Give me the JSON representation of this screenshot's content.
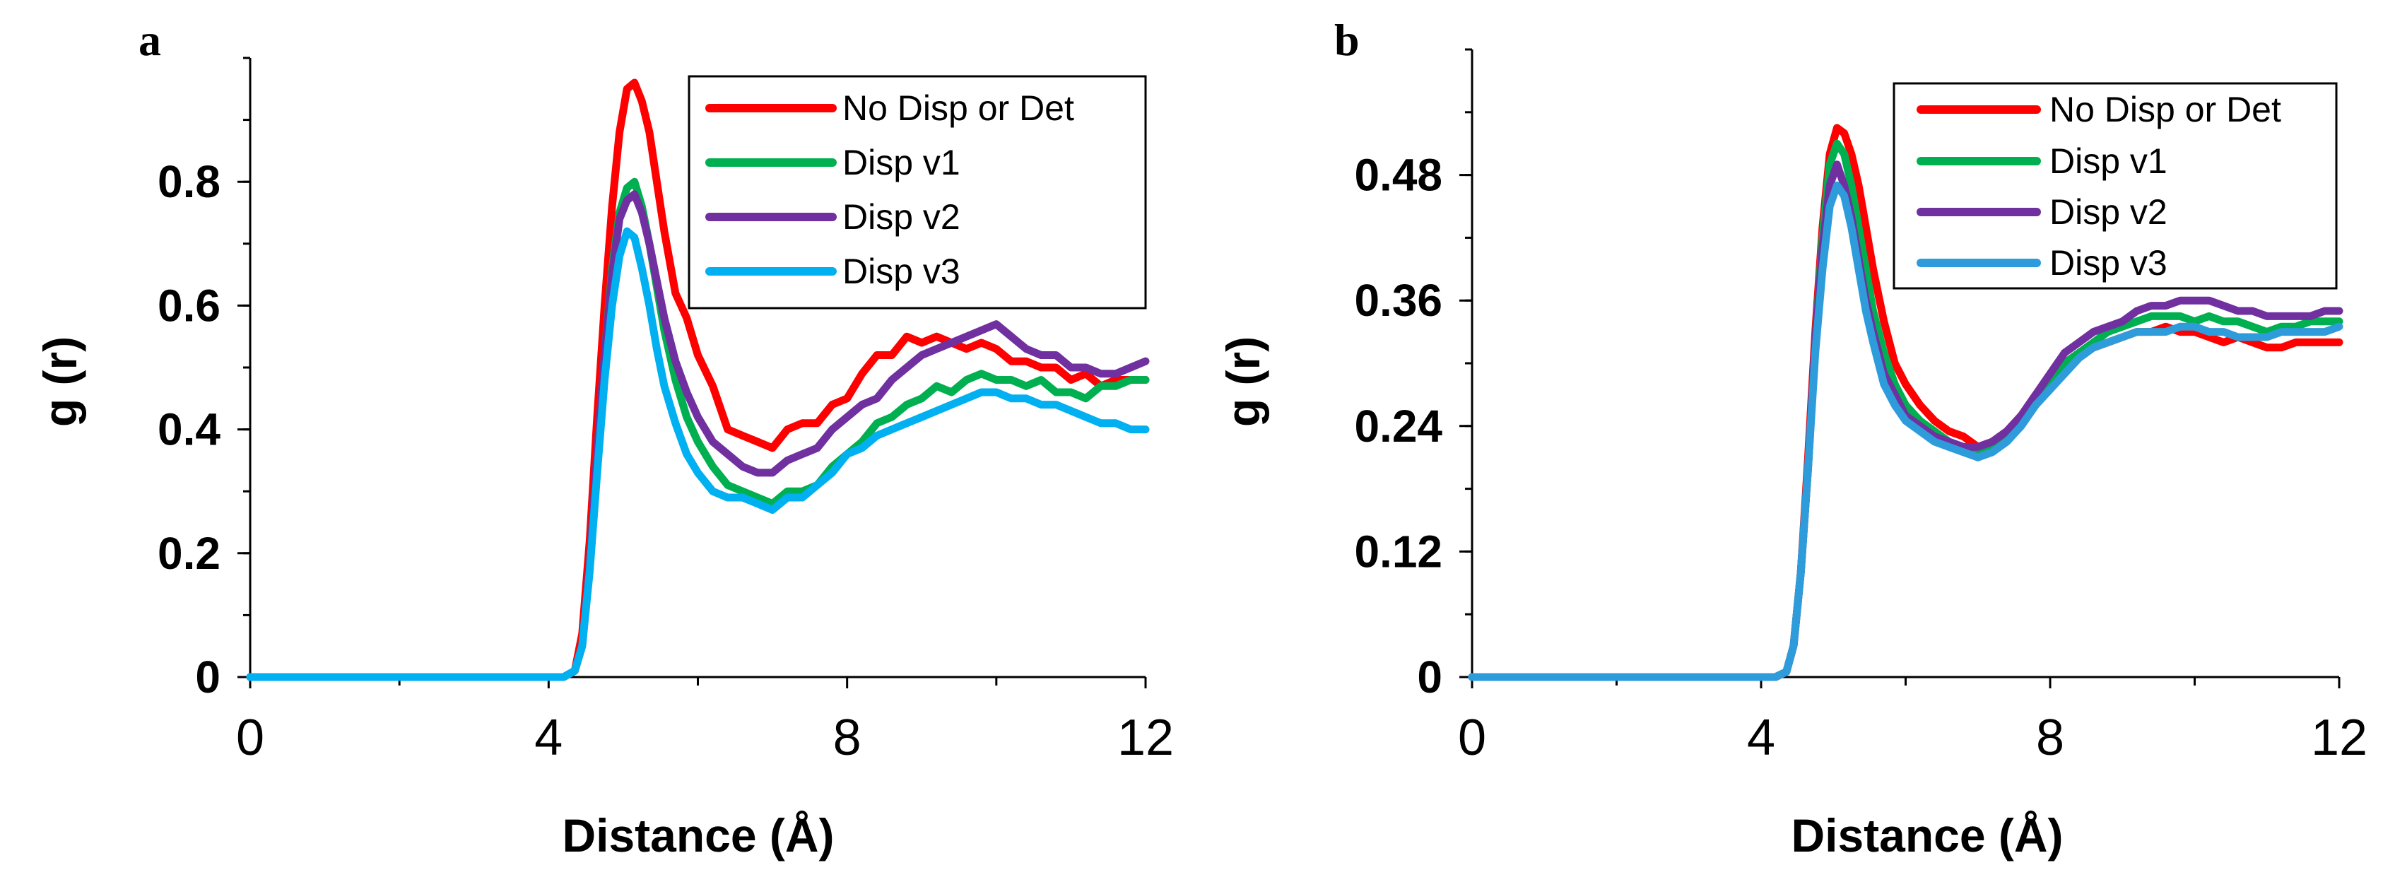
{
  "chart_data": [
    {
      "panel": "a",
      "type": "line",
      "xlabel": "Distance (Å)",
      "ylabel": "g (r)",
      "xlim": [
        0,
        12
      ],
      "ylim": [
        0,
        1.0
      ],
      "xticks": [
        0,
        4,
        8,
        12
      ],
      "xtick_labels": [
        "0",
        "4",
        "8",
        "12"
      ],
      "yticks": [
        0,
        0.2,
        0.4,
        0.6,
        0.8
      ],
      "ytick_labels": [
        "0",
        "0.2",
        "0.4",
        "0.6",
        "0.8"
      ],
      "legend_position": "top-right",
      "series": [
        {
          "name": "No Disp or Det",
          "color": "#ff0000",
          "x": [
            0,
            4.0,
            4.2,
            4.35,
            4.45,
            4.55,
            4.65,
            4.75,
            4.85,
            4.95,
            5.05,
            5.15,
            5.25,
            5.35,
            5.45,
            5.55,
            5.7,
            5.85,
            6.0,
            6.2,
            6.4,
            6.6,
            6.8,
            7.0,
            7.2,
            7.4,
            7.6,
            7.8,
            8.0,
            8.2,
            8.4,
            8.6,
            8.8,
            9.0,
            9.2,
            9.4,
            9.6,
            9.8,
            10.0,
            10.2,
            10.4,
            10.6,
            10.8,
            11.0,
            11.2,
            11.4,
            11.6,
            11.8,
            12.0
          ],
          "y": [
            0,
            0,
            0,
            0.01,
            0.07,
            0.22,
            0.42,
            0.6,
            0.76,
            0.88,
            0.95,
            0.96,
            0.93,
            0.88,
            0.8,
            0.72,
            0.62,
            0.58,
            0.52,
            0.47,
            0.4,
            0.39,
            0.38,
            0.37,
            0.4,
            0.41,
            0.41,
            0.44,
            0.45,
            0.49,
            0.52,
            0.52,
            0.55,
            0.54,
            0.55,
            0.54,
            0.53,
            0.54,
            0.53,
            0.51,
            0.51,
            0.5,
            0.5,
            0.48,
            0.49,
            0.47,
            0.48,
            0.48,
            0.48
          ]
        },
        {
          "name": "Disp v1",
          "color": "#00b050",
          "x": [
            0,
            4.0,
            4.2,
            4.35,
            4.45,
            4.55,
            4.65,
            4.75,
            4.85,
            4.95,
            5.05,
            5.15,
            5.25,
            5.35,
            5.45,
            5.55,
            5.7,
            5.85,
            6.0,
            6.2,
            6.4,
            6.6,
            6.8,
            7.0,
            7.2,
            7.4,
            7.6,
            7.8,
            8.0,
            8.2,
            8.4,
            8.6,
            8.8,
            9.0,
            9.2,
            9.4,
            9.6,
            9.8,
            10.0,
            10.2,
            10.4,
            10.6,
            10.8,
            11.0,
            11.2,
            11.4,
            11.6,
            11.8,
            12.0
          ],
          "y": [
            0,
            0,
            0,
            0.01,
            0.05,
            0.18,
            0.36,
            0.52,
            0.66,
            0.75,
            0.79,
            0.8,
            0.76,
            0.7,
            0.63,
            0.56,
            0.48,
            0.42,
            0.38,
            0.34,
            0.31,
            0.3,
            0.29,
            0.28,
            0.3,
            0.3,
            0.31,
            0.34,
            0.36,
            0.38,
            0.41,
            0.42,
            0.44,
            0.45,
            0.47,
            0.46,
            0.48,
            0.49,
            0.48,
            0.48,
            0.47,
            0.48,
            0.46,
            0.46,
            0.45,
            0.47,
            0.47,
            0.48,
            0.48
          ]
        },
        {
          "name": "Disp v2",
          "color": "#7030a0",
          "x": [
            0,
            4.0,
            4.2,
            4.35,
            4.45,
            4.55,
            4.65,
            4.75,
            4.85,
            4.95,
            5.05,
            5.15,
            5.25,
            5.35,
            5.45,
            5.55,
            5.7,
            5.85,
            6.0,
            6.2,
            6.4,
            6.6,
            6.8,
            7.0,
            7.2,
            7.4,
            7.6,
            7.8,
            8.0,
            8.2,
            8.4,
            8.6,
            8.8,
            9.0,
            9.2,
            9.4,
            9.6,
            9.8,
            10.0,
            10.2,
            10.4,
            10.6,
            10.8,
            11.0,
            11.2,
            11.4,
            11.6,
            11.8,
            12.0
          ],
          "y": [
            0,
            0,
            0,
            0.01,
            0.05,
            0.18,
            0.36,
            0.52,
            0.65,
            0.74,
            0.77,
            0.78,
            0.75,
            0.7,
            0.64,
            0.58,
            0.51,
            0.46,
            0.42,
            0.38,
            0.36,
            0.34,
            0.33,
            0.33,
            0.35,
            0.36,
            0.37,
            0.4,
            0.42,
            0.44,
            0.45,
            0.48,
            0.5,
            0.52,
            0.53,
            0.54,
            0.55,
            0.56,
            0.57,
            0.55,
            0.53,
            0.52,
            0.52,
            0.5,
            0.5,
            0.49,
            0.49,
            0.5,
            0.51
          ]
        },
        {
          "name": "Disp v3",
          "color": "#00b0f0",
          "x": [
            0,
            4.0,
            4.2,
            4.35,
            4.45,
            4.55,
            4.65,
            4.75,
            4.85,
            4.95,
            5.05,
            5.15,
            5.25,
            5.35,
            5.45,
            5.55,
            5.7,
            5.85,
            6.0,
            6.2,
            6.4,
            6.6,
            6.8,
            7.0,
            7.2,
            7.4,
            7.6,
            7.8,
            8.0,
            8.2,
            8.4,
            8.6,
            8.8,
            9.0,
            9.2,
            9.4,
            9.6,
            9.8,
            10.0,
            10.2,
            10.4,
            10.6,
            10.8,
            11.0,
            11.2,
            11.4,
            11.6,
            11.8,
            12.0
          ],
          "y": [
            0,
            0,
            0,
            0.01,
            0.05,
            0.17,
            0.33,
            0.48,
            0.6,
            0.68,
            0.72,
            0.71,
            0.66,
            0.6,
            0.53,
            0.47,
            0.41,
            0.36,
            0.33,
            0.3,
            0.29,
            0.29,
            0.28,
            0.27,
            0.29,
            0.29,
            0.31,
            0.33,
            0.36,
            0.37,
            0.39,
            0.4,
            0.41,
            0.42,
            0.43,
            0.44,
            0.45,
            0.46,
            0.46,
            0.45,
            0.45,
            0.44,
            0.44,
            0.43,
            0.42,
            0.41,
            0.41,
            0.4,
            0.4
          ]
        }
      ]
    },
    {
      "panel": "b",
      "type": "line",
      "xlabel": "Distance (Å)",
      "ylabel": "g (r)",
      "xlim": [
        0,
        12
      ],
      "ylim": [
        0,
        0.6
      ],
      "xticks": [
        0,
        4,
        8,
        12
      ],
      "xtick_labels": [
        "0",
        "4",
        "8",
        "12"
      ],
      "yticks": [
        0,
        0.12,
        0.24,
        0.36,
        0.48
      ],
      "ytick_labels": [
        "0",
        "0.12",
        "0.24",
        "0.36",
        "0.48"
      ],
      "legend_position": "top-right",
      "series": [
        {
          "name": "No Disp or Det",
          "color": "#ff0000",
          "x": [
            0,
            4.0,
            4.2,
            4.35,
            4.45,
            4.55,
            4.65,
            4.75,
            4.85,
            4.95,
            5.05,
            5.15,
            5.25,
            5.35,
            5.45,
            5.55,
            5.7,
            5.85,
            6.0,
            6.2,
            6.4,
            6.6,
            6.8,
            7.0,
            7.2,
            7.4,
            7.6,
            7.8,
            8.0,
            8.2,
            8.4,
            8.6,
            8.8,
            9.0,
            9.2,
            9.4,
            9.6,
            9.8,
            10.0,
            10.2,
            10.4,
            10.6,
            10.8,
            11.0,
            11.2,
            11.4,
            11.6,
            11.8,
            12.0
          ],
          "y": [
            0,
            0,
            0,
            0.005,
            0.03,
            0.1,
            0.21,
            0.33,
            0.43,
            0.5,
            0.525,
            0.52,
            0.5,
            0.47,
            0.43,
            0.39,
            0.34,
            0.3,
            0.28,
            0.26,
            0.245,
            0.235,
            0.23,
            0.22,
            0.225,
            0.235,
            0.25,
            0.27,
            0.285,
            0.3,
            0.31,
            0.315,
            0.32,
            0.325,
            0.33,
            0.33,
            0.335,
            0.33,
            0.33,
            0.325,
            0.32,
            0.325,
            0.32,
            0.315,
            0.315,
            0.32,
            0.32,
            0.32,
            0.32
          ]
        },
        {
          "name": "Disp v1",
          "color": "#00b050",
          "x": [
            0,
            4.0,
            4.2,
            4.35,
            4.45,
            4.55,
            4.65,
            4.75,
            4.85,
            4.95,
            5.05,
            5.15,
            5.25,
            5.35,
            5.45,
            5.55,
            5.7,
            5.85,
            6.0,
            6.2,
            6.4,
            6.6,
            6.8,
            7.0,
            7.2,
            7.4,
            7.6,
            7.8,
            8.0,
            8.2,
            8.4,
            8.6,
            8.8,
            9.0,
            9.2,
            9.4,
            9.6,
            9.8,
            10.0,
            10.2,
            10.4,
            10.6,
            10.8,
            11.0,
            11.2,
            11.4,
            11.6,
            11.8,
            12.0
          ],
          "y": [
            0,
            0,
            0,
            0.005,
            0.03,
            0.1,
            0.2,
            0.32,
            0.42,
            0.49,
            0.51,
            0.5,
            0.47,
            0.43,
            0.39,
            0.35,
            0.31,
            0.28,
            0.26,
            0.245,
            0.235,
            0.225,
            0.22,
            0.215,
            0.22,
            0.23,
            0.245,
            0.26,
            0.28,
            0.3,
            0.31,
            0.32,
            0.33,
            0.335,
            0.34,
            0.345,
            0.345,
            0.345,
            0.34,
            0.345,
            0.34,
            0.34,
            0.335,
            0.33,
            0.335,
            0.335,
            0.34,
            0.34,
            0.34
          ]
        },
        {
          "name": "Disp v2",
          "color": "#7030a0",
          "x": [
            0,
            4.0,
            4.2,
            4.35,
            4.45,
            4.55,
            4.65,
            4.75,
            4.85,
            4.95,
            5.05,
            5.15,
            5.25,
            5.35,
            5.45,
            5.55,
            5.7,
            5.85,
            6.0,
            6.2,
            6.4,
            6.6,
            6.8,
            7.0,
            7.2,
            7.4,
            7.6,
            7.8,
            8.0,
            8.2,
            8.4,
            8.6,
            8.8,
            9.0,
            9.2,
            9.4,
            9.6,
            9.8,
            10.0,
            10.2,
            10.4,
            10.6,
            10.8,
            11.0,
            11.2,
            11.4,
            11.6,
            11.8,
            12.0
          ],
          "y": [
            0,
            0,
            0,
            0.005,
            0.03,
            0.1,
            0.2,
            0.32,
            0.41,
            0.47,
            0.49,
            0.47,
            0.44,
            0.4,
            0.36,
            0.33,
            0.29,
            0.27,
            0.25,
            0.24,
            0.23,
            0.225,
            0.22,
            0.22,
            0.225,
            0.235,
            0.25,
            0.27,
            0.29,
            0.31,
            0.32,
            0.33,
            0.335,
            0.34,
            0.35,
            0.355,
            0.355,
            0.36,
            0.36,
            0.36,
            0.355,
            0.35,
            0.35,
            0.345,
            0.345,
            0.345,
            0.345,
            0.35,
            0.35
          ]
        },
        {
          "name": "Disp v3",
          "color": "#2e9cdb",
          "x": [
            0,
            4.0,
            4.2,
            4.35,
            4.45,
            4.55,
            4.65,
            4.75,
            4.85,
            4.95,
            5.05,
            5.15,
            5.25,
            5.35,
            5.45,
            5.55,
            5.7,
            5.85,
            6.0,
            6.2,
            6.4,
            6.6,
            6.8,
            7.0,
            7.2,
            7.4,
            7.6,
            7.8,
            8.0,
            8.2,
            8.4,
            8.6,
            8.8,
            9.0,
            9.2,
            9.4,
            9.6,
            9.8,
            10.0,
            10.2,
            10.4,
            10.6,
            10.8,
            11.0,
            11.2,
            11.4,
            11.6,
            11.8,
            12.0
          ],
          "y": [
            0,
            0,
            0,
            0.005,
            0.03,
            0.1,
            0.2,
            0.31,
            0.39,
            0.45,
            0.47,
            0.46,
            0.43,
            0.39,
            0.35,
            0.32,
            0.28,
            0.26,
            0.245,
            0.235,
            0.225,
            0.22,
            0.215,
            0.21,
            0.215,
            0.225,
            0.24,
            0.26,
            0.275,
            0.29,
            0.305,
            0.315,
            0.32,
            0.325,
            0.33,
            0.33,
            0.33,
            0.335,
            0.335,
            0.33,
            0.33,
            0.325,
            0.325,
            0.325,
            0.33,
            0.33,
            0.33,
            0.33,
            0.335
          ]
        }
      ]
    }
  ]
}
